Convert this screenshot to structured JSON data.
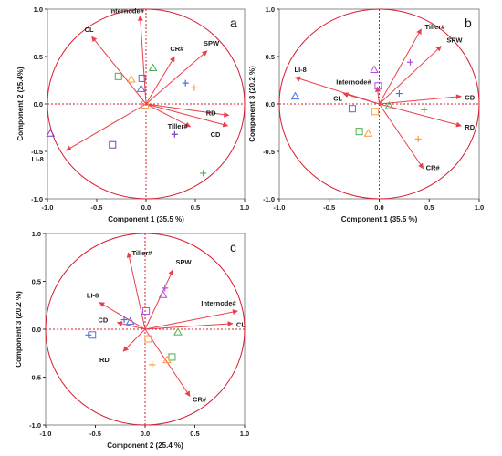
{
  "chart_data": [
    {
      "type": "scatter",
      "panel_label": "a",
      "xlabel": "Component 1  (35.5 %)",
      "ylabel": "Component 2  (25.4%)",
      "xlim": [
        -1.0,
        1.0
      ],
      "ylim": [
        -1.0,
        1.0
      ],
      "xticks": [
        "-1.0",
        "-0.5",
        "0.0",
        "0.5",
        "1.0"
      ],
      "yticks": [
        "-1.0",
        "-0.5",
        "0.0",
        "0.5",
        "1.0"
      ],
      "grid": false,
      "unit_circle": true,
      "vectors": [
        {
          "label": "Internode#",
          "x": -0.06,
          "y": 0.93
        },
        {
          "label": "CL",
          "x": -0.55,
          "y": 0.71
        },
        {
          "label": "CR#",
          "x": 0.29,
          "y": 0.5
        },
        {
          "label": "SPW",
          "x": 0.62,
          "y": 0.56
        },
        {
          "label": "RD",
          "x": 0.84,
          "y": -0.12
        },
        {
          "label": "Tiller#",
          "x": 0.45,
          "y": -0.24
        },
        {
          "label": "CD",
          "x": 0.83,
          "y": -0.23
        },
        {
          "label": "LI-8",
          "x": -0.81,
          "y": -0.49
        }
      ],
      "points": [
        {
          "shape": "square",
          "color": "#4caf50",
          "x": -0.28,
          "y": 0.29
        },
        {
          "shape": "triangle",
          "color": "#ff9a3c",
          "x": -0.15,
          "y": 0.26
        },
        {
          "shape": "square",
          "color": "#4d6fe0",
          "x": -0.04,
          "y": 0.27
        },
        {
          "shape": "triangle",
          "color": "#4caf50",
          "x": 0.07,
          "y": 0.38
        },
        {
          "shape": "triangle",
          "color": "#4d6fe0",
          "x": -0.05,
          "y": 0.16
        },
        {
          "shape": "plus",
          "color": "#4d6fe0",
          "x": 0.4,
          "y": 0.22
        },
        {
          "shape": "plus",
          "color": "#ff9a3c",
          "x": 0.49,
          "y": 0.17
        },
        {
          "shape": "square",
          "color": "#ff9a3c",
          "x": -0.01,
          "y": -0.01
        },
        {
          "shape": "plus",
          "color": "#7e3fbf",
          "x": 0.29,
          "y": -0.32
        },
        {
          "shape": "square",
          "color": "#7e3fbf",
          "x": -0.34,
          "y": -0.43
        },
        {
          "shape": "triangle",
          "color": "#7e3fbf",
          "x": -0.97,
          "y": -0.31
        },
        {
          "shape": "plus",
          "color": "#4caf50",
          "x": 0.58,
          "y": -0.73
        }
      ]
    },
    {
      "type": "scatter",
      "panel_label": "b",
      "xlabel": "Component 1  (35.5 %)",
      "ylabel": "Component 3  (20.2 %)",
      "xlim": [
        -1.0,
        1.0
      ],
      "ylim": [
        -1.0,
        1.0
      ],
      "xticks": [
        "-1.0",
        "-0.5",
        "0.0",
        "0.5",
        "1.0"
      ],
      "yticks": [
        "-1.0",
        "-0.5",
        "0.0",
        "0.5",
        "1.0"
      ],
      "grid": false,
      "unit_circle": true,
      "vectors": [
        {
          "label": "Tiller#",
          "x": 0.42,
          "y": 0.79
        },
        {
          "label": "SPW",
          "x": 0.62,
          "y": 0.61
        },
        {
          "label": "LI-8",
          "x": -0.84,
          "y": 0.28
        },
        {
          "label": "CL",
          "x": -0.36,
          "y": 0.11
        },
        {
          "label": "Internode#",
          "x": -0.02,
          "y": 0.18
        },
        {
          "label": "CD",
          "x": 0.82,
          "y": 0.08
        },
        {
          "label": "RD",
          "x": 0.82,
          "y": -0.23
        },
        {
          "label": "CR#",
          "x": 0.44,
          "y": -0.68
        }
      ],
      "points": [
        {
          "shape": "triangle",
          "color": "#b04fdc",
          "x": -0.05,
          "y": 0.36
        },
        {
          "shape": "plus",
          "color": "#b04fdc",
          "x": 0.31,
          "y": 0.44
        },
        {
          "shape": "square",
          "color": "#b04fdc",
          "x": -0.01,
          "y": 0.19
        },
        {
          "shape": "triangle",
          "color": "#4d6fe0",
          "x": -0.84,
          "y": 0.08
        },
        {
          "shape": "plus",
          "color": "#4d6fe0",
          "x": 0.2,
          "y": 0.11
        },
        {
          "shape": "square",
          "color": "#4d6fe0",
          "x": -0.27,
          "y": -0.05
        },
        {
          "shape": "square",
          "color": "#ff9a3c",
          "x": -0.04,
          "y": -0.08
        },
        {
          "shape": "triangle",
          "color": "#4caf50",
          "x": 0.1,
          "y": -0.02
        },
        {
          "shape": "plus",
          "color": "#4caf50",
          "x": 0.45,
          "y": -0.06
        },
        {
          "shape": "square",
          "color": "#4caf50",
          "x": -0.2,
          "y": -0.29
        },
        {
          "shape": "triangle",
          "color": "#ff9a3c",
          "x": -0.11,
          "y": -0.31
        },
        {
          "shape": "plus",
          "color": "#ff9a3c",
          "x": 0.39,
          "y": -0.37
        }
      ]
    },
    {
      "type": "scatter",
      "panel_label": "c",
      "xlabel": "Component 2  (25.4 %)",
      "ylabel": "Component 3  (20.2 %)",
      "xlim": [
        -1.0,
        1.0
      ],
      "ylim": [
        -1.0,
        1.0
      ],
      "xticks": [
        "-1.0",
        "-0.5",
        "0.0",
        "0.5",
        "1.0"
      ],
      "yticks": [
        "-1.0",
        "-0.5",
        "0.0",
        "0.5",
        "1.0"
      ],
      "grid": false,
      "unit_circle": true,
      "vectors": [
        {
          "label": "Tiller#",
          "x": -0.17,
          "y": 0.8
        },
        {
          "label": "SPW",
          "x": 0.28,
          "y": 0.62
        },
        {
          "label": "Internode#",
          "x": 0.93,
          "y": 0.19
        },
        {
          "label": "CL",
          "x": 0.88,
          "y": 0.06
        },
        {
          "label": "LI-8",
          "x": -0.46,
          "y": 0.28
        },
        {
          "label": "CD",
          "x": -0.28,
          "y": 0.07
        },
        {
          "label": "RD",
          "x": -0.22,
          "y": -0.23
        },
        {
          "label": "CR#",
          "x": 0.45,
          "y": -0.7
        }
      ],
      "points": [
        {
          "shape": "plus",
          "color": "#b04fdc",
          "x": 0.2,
          "y": 0.43
        },
        {
          "shape": "triangle",
          "color": "#b04fdc",
          "x": 0.18,
          "y": 0.36
        },
        {
          "shape": "square",
          "color": "#b04fdc",
          "x": 0.01,
          "y": 0.19
        },
        {
          "shape": "plus",
          "color": "#4d6fe0",
          "x": -0.21,
          "y": 0.1
        },
        {
          "shape": "triangle",
          "color": "#4d6fe0",
          "x": -0.15,
          "y": 0.08
        },
        {
          "shape": "square",
          "color": "#4d6fe0",
          "x": -0.53,
          "y": -0.06
        },
        {
          "shape": "plus",
          "color": "#4d6fe0",
          "x": -0.57,
          "y": -0.06
        },
        {
          "shape": "square",
          "color": "#ff9a3c",
          "x": 0.03,
          "y": -0.1
        },
        {
          "shape": "triangle",
          "color": "#4caf50",
          "x": 0.33,
          "y": -0.03
        },
        {
          "shape": "square",
          "color": "#4caf50",
          "x": 0.27,
          "y": -0.29
        },
        {
          "shape": "triangle",
          "color": "#ff9a3c",
          "x": 0.22,
          "y": -0.32
        },
        {
          "shape": "plus",
          "color": "#ff9a3c",
          "x": 0.07,
          "y": -0.37
        }
      ]
    }
  ],
  "colors": {
    "vector": "#e8404a",
    "axis_dotted": "#d81b2c",
    "circle": "#d81b2c",
    "frame": "#888888",
    "text": "#1a1a1a"
  }
}
